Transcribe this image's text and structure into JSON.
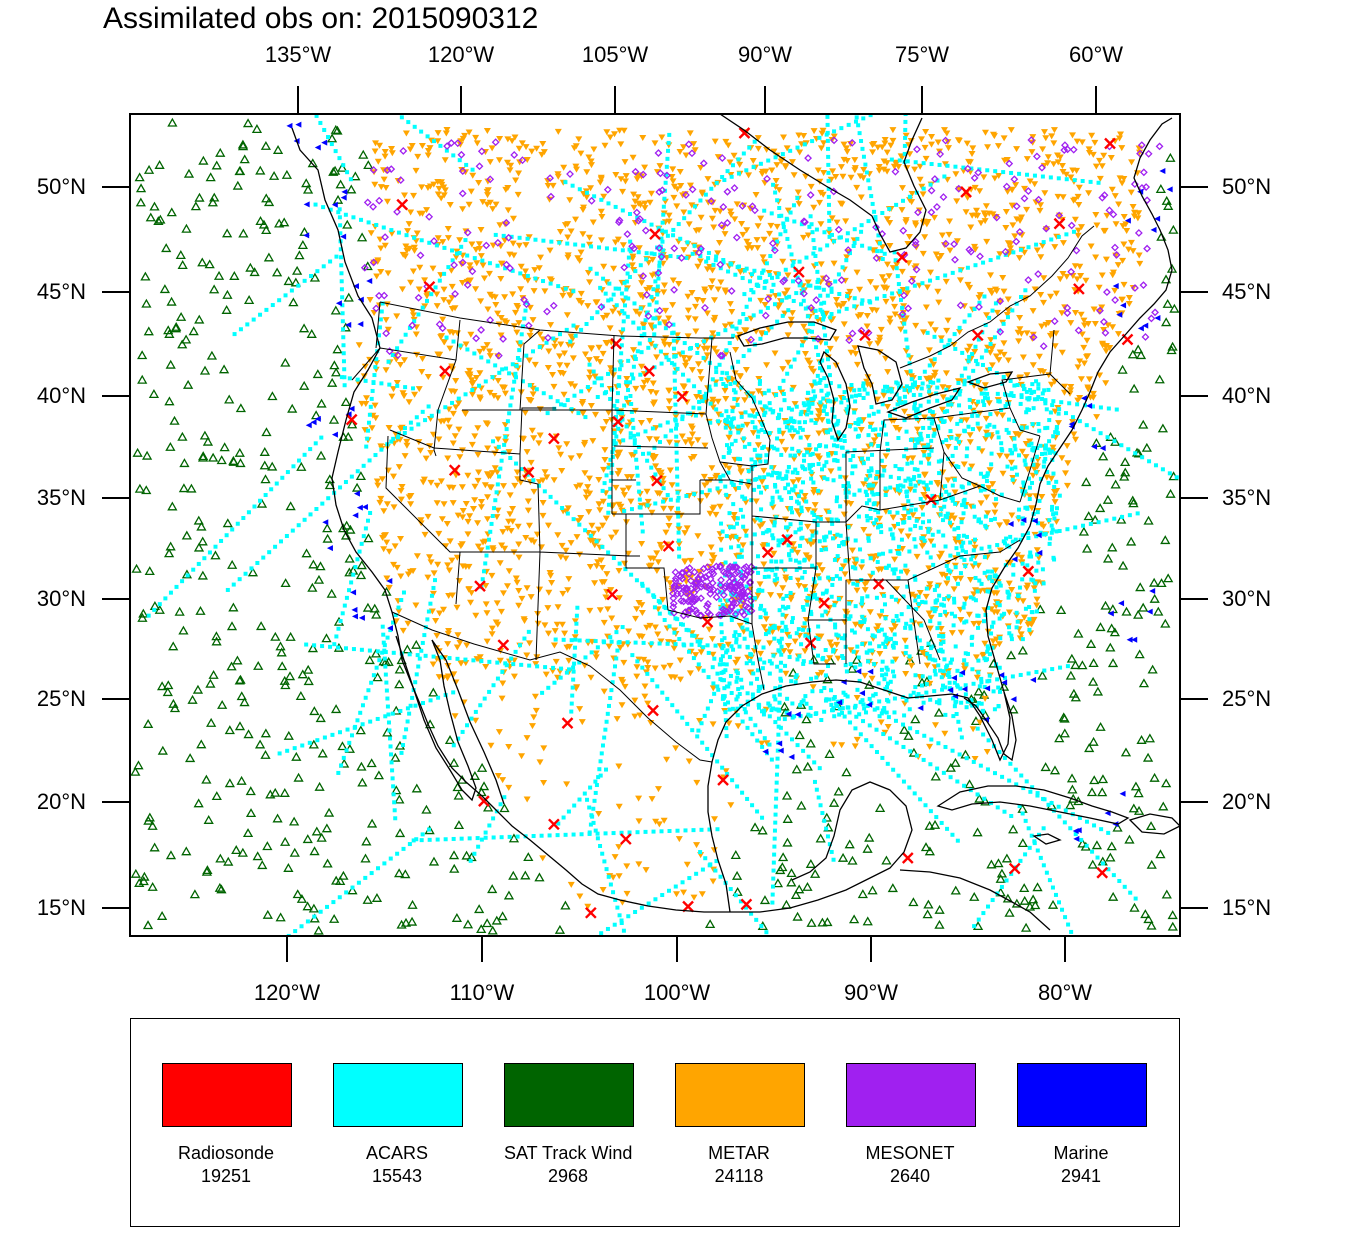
{
  "title": "Assimilated obs on: 2015090312",
  "axes": {
    "top": [
      "135°W",
      "120°W",
      "105°W",
      "90°W",
      "75°W",
      "60°W"
    ],
    "bottom": [
      "120°W",
      "110°W",
      "100°W",
      "90°W",
      "80°W"
    ],
    "left": [
      "50°N",
      "45°N",
      "40°N",
      "35°N",
      "30°N",
      "25°N",
      "20°N",
      "15°N"
    ],
    "right": [
      "50°N",
      "45°N",
      "40°N",
      "35°N",
      "30°N",
      "25°N",
      "20°N",
      "15°N"
    ]
  },
  "extent": {
    "lon": [
      -128,
      -74
    ],
    "lat": [
      14,
      53
    ]
  },
  "legend": [
    {
      "name": "Radiosonde",
      "count": "19251",
      "color": "#ff0000",
      "symbol": "x"
    },
    {
      "name": "ACARS",
      "count": "15543",
      "color": "#00ffff",
      "symbol": "square"
    },
    {
      "name": "SAT Track Wind",
      "count": "2968",
      "color": "#006400",
      "symbol": "triangle-up"
    },
    {
      "name": "METAR",
      "count": "24118",
      "color": "#ffa500",
      "symbol": "triangle-down"
    },
    {
      "name": "MESONET",
      "count": "2640",
      "color": "#a020f0",
      "symbol": "diamond"
    },
    {
      "name": "Marine",
      "count": "2941",
      "color": "#0000ff",
      "symbol": "triangle-left"
    }
  ],
  "radiosonde_sites": [
    [
      -114,
      48.7
    ],
    [
      -112.6,
      44.8
    ],
    [
      -96.4,
      52.1
    ],
    [
      -88.3,
      46.2
    ],
    [
      -85,
      49.3
    ],
    [
      -93.6,
      45.5
    ],
    [
      -101,
      47.3
    ],
    [
      -116.6,
      38.5
    ],
    [
      -111.3,
      36.1
    ],
    [
      -106.2,
      37.6
    ],
    [
      -102.9,
      38.4
    ],
    [
      -101.3,
      40.8
    ],
    [
      -99.6,
      39.6
    ],
    [
      -100.9,
      35.6
    ],
    [
      -100.3,
      32.5
    ],
    [
      -103.2,
      30.2
    ],
    [
      -108.8,
      27.8
    ],
    [
      -110,
      30.6
    ],
    [
      -95.2,
      32.2
    ],
    [
      -92.3,
      29.8
    ],
    [
      -93,
      27.9
    ],
    [
      -101.1,
      24.7
    ],
    [
      -105.5,
      24.1
    ],
    [
      -106.2,
      19.3
    ],
    [
      -109.8,
      20.4
    ],
    [
      -102.5,
      18.6
    ],
    [
      -104.3,
      15.1
    ],
    [
      -99.3,
      15.4
    ],
    [
      -96.3,
      15.5
    ],
    [
      -88,
      17.7
    ],
    [
      -82.5,
      17.2
    ],
    [
      -78,
      17
    ],
    [
      -76.7,
      42.3
    ],
    [
      -79.2,
      44.7
    ],
    [
      -80.2,
      47.8
    ],
    [
      -77.6,
      51.6
    ],
    [
      -90.2,
      42.5
    ],
    [
      -103,
      42.1
    ],
    [
      -111.8,
      40.8
    ],
    [
      -107.5,
      36
    ],
    [
      -98.3,
      28.9
    ],
    [
      -97.5,
      21.4
    ],
    [
      -94.2,
      32.8
    ],
    [
      -84.4,
      42.5
    ],
    [
      -89.5,
      30.7
    ],
    [
      -86.8,
      34.7
    ],
    [
      -81.8,
      31.3
    ]
  ]
}
